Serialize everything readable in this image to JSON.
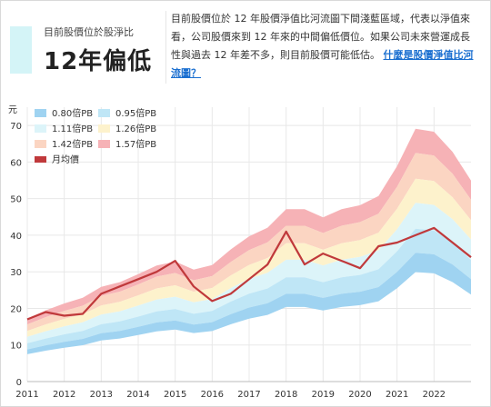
{
  "summary": {
    "label": "目前股價位於股淨比",
    "value": "12年偏低",
    "accent": "#d4f4f7"
  },
  "description": {
    "text": "目前股價位於 12 年股價淨值比河流圖下間淺藍區域，代表以淨值來看，公司股價來到 12 年來的中間偏低價位。如果公司未來營運成長性與過去 12 年差不多，則目前股價可能低估。",
    "link": "什麼是股價淨值比河流圖？",
    "link_color": "#1a6fd0"
  },
  "chart_data": {
    "type": "area",
    "y_unit": "元",
    "ylim": [
      0,
      75
    ],
    "yticks": [
      0,
      10,
      20,
      30,
      40,
      50,
      60,
      70
    ],
    "xlim": [
      2011.0,
      2023.0
    ],
    "xticks": [
      "2011",
      "2012",
      "2013",
      "2014",
      "2015",
      "2016",
      "2017",
      "2018",
      "2019",
      "2020",
      "2021",
      "2022"
    ],
    "grid": true,
    "legend_position": "top-left",
    "bands": [
      {
        "name": "0.80倍PB",
        "multiple": 0.8,
        "color": "#9fd3f1"
      },
      {
        "name": "0.95倍PB",
        "multiple": 0.95,
        "color": "#bfe6f6"
      },
      {
        "name": "1.11倍PB",
        "multiple": 1.11,
        "color": "#dcf4f9"
      },
      {
        "name": "1.26倍PB",
        "multiple": 1.26,
        "color": "#fdf2cc"
      },
      {
        "name": "1.42倍PB",
        "multiple": 1.42,
        "color": "#fbd5c2"
      },
      {
        "name": "1.57倍PB",
        "multiple": 1.57,
        "color": "#f6b2b6"
      }
    ],
    "price_series": {
      "name": "月均價",
      "color": "#c0393b"
    },
    "x": [
      2011.0,
      2011.5,
      2012.0,
      2012.5,
      2013.0,
      2013.5,
      2014.0,
      2014.5,
      2015.0,
      2015.5,
      2016.0,
      2016.5,
      2017.0,
      2017.5,
      2018.0,
      2018.5,
      2019.0,
      2019.5,
      2020.0,
      2020.5,
      2021.0,
      2021.5,
      2022.0,
      2022.5,
      2023.0
    ],
    "book_value": [
      11.0,
      12.4,
      13.6,
      14.6,
      16.5,
      17.3,
      18.7,
      20.2,
      20.9,
      19.5,
      20.3,
      23.0,
      25.3,
      26.8,
      30.0,
      30.0,
      28.6,
      30.0,
      30.7,
      32.3,
      37.5,
      44.0,
      43.5,
      40.0,
      35.0
    ],
    "monthly_price": [
      17.0,
      19.0,
      18.0,
      18.5,
      24.0,
      26.0,
      28.0,
      30.0,
      33.0,
      26.0,
      22.0,
      24.0,
      28.0,
      32.0,
      41.0,
      32.0,
      35.0,
      33.0,
      31.0,
      37.0,
      38.0,
      40.0,
      42.0,
      38.0,
      34.0
    ]
  }
}
